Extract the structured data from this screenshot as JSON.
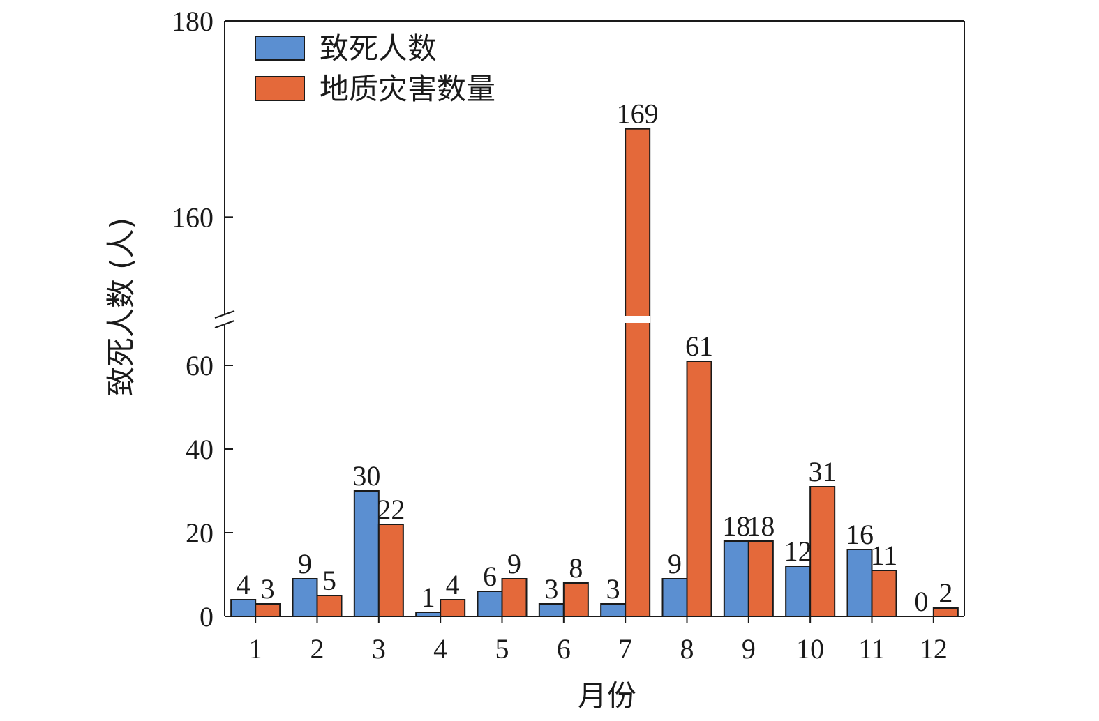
{
  "chart_data": {
    "type": "bar",
    "categories": [
      "1",
      "2",
      "3",
      "4",
      "5",
      "6",
      "7",
      "8",
      "9",
      "10",
      "11",
      "12"
    ],
    "series": [
      {
        "name": "致死人数",
        "values": [
          4,
          9,
          30,
          1,
          6,
          3,
          3,
          9,
          18,
          12,
          16,
          0
        ],
        "color": "#5b8fd1"
      },
      {
        "name": "地质灾害数量",
        "values": [
          3,
          5,
          22,
          4,
          9,
          8,
          169,
          61,
          18,
          31,
          11,
          2
        ],
        "color": "#e4693a"
      }
    ],
    "xlabel": "月份",
    "ylabel": "致死人数 (人)",
    "y_axis": {
      "broken": true,
      "lower_range": [
        0,
        70
      ],
      "upper_range": [
        150,
        180
      ],
      "lower_ticks": [
        0,
        20,
        40,
        60
      ],
      "upper_ticks": [
        160,
        180
      ]
    },
    "legend": {
      "placement": "top-left"
    },
    "grid": false
  }
}
